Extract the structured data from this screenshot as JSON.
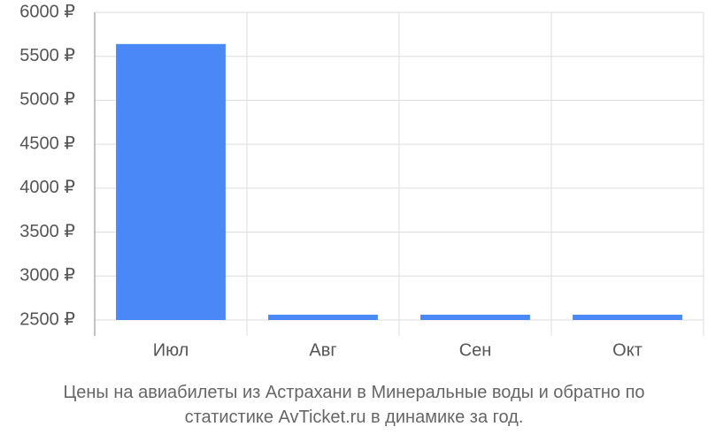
{
  "chart_data": {
    "type": "bar",
    "title": "Цены на авиабилеты из Астрахани в Минеральные воды и обратно по статистике AvTicket.ru в динамике за год.",
    "categories": [
      "Июл",
      "Авг",
      "Сен",
      "Окт"
    ],
    "values": [
      5640,
      2560,
      2560,
      2560
    ],
    "color": "#4a88f8",
    "ylim": [
      2500,
      6000
    ],
    "yticks": [
      {
        "value": 2500,
        "label": "2500 ₽"
      },
      {
        "value": 3000,
        "label": "3000 ₽"
      },
      {
        "value": 3500,
        "label": "3500 ₽"
      },
      {
        "value": 4000,
        "label": "4000 ₽"
      },
      {
        "value": 4500,
        "label": "4500 ₽"
      },
      {
        "value": 5000,
        "label": "5000 ₽"
      },
      {
        "value": 5500,
        "label": "5500 ₽"
      },
      {
        "value": 6000,
        "label": "6000 ₽"
      }
    ],
    "grid": true
  }
}
